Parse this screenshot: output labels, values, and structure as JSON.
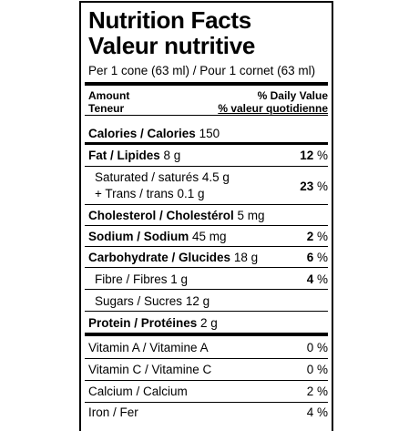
{
  "title_en": "Nutrition Facts",
  "title_fr": "Valeur nutritive",
  "serving": "Per 1 cone (63 ml) / Pour 1 cornet (63 ml)",
  "header": {
    "amount_en": "Amount",
    "amount_fr": "Teneur",
    "dv_en": "% Daily Value",
    "dv_fr": "% valeur quotidienne"
  },
  "calories": {
    "label": "Calories / Calories",
    "value": "150"
  },
  "fat": {
    "label": "Fat / Lipides",
    "value": "8 g",
    "pct_num": "12",
    "pct_sign": "%"
  },
  "saturated": {
    "label": "Saturated / saturés",
    "value": "4.5 g"
  },
  "trans": {
    "label": "+ Trans / trans",
    "value": "0.1 g"
  },
  "sat_trans_pct": {
    "num": "23",
    "sign": "%"
  },
  "cholesterol": {
    "label": "Cholesterol / Cholestérol",
    "value": "5 mg"
  },
  "sodium": {
    "label": "Sodium / Sodium",
    "value": "45 mg",
    "pct_num": "2",
    "pct_sign": "%"
  },
  "carbohydrate": {
    "label": "Carbohydrate / Glucides",
    "value": "18 g",
    "pct_num": "6",
    "pct_sign": "%"
  },
  "fibre": {
    "label": "Fibre / Fibres",
    "value": "1 g",
    "pct_num": "4",
    "pct_sign": "%"
  },
  "sugars": {
    "label": "Sugars / Sucres",
    "value": "12 g"
  },
  "protein": {
    "label": "Protein / Protéines",
    "value": "2 g"
  },
  "vitamin_a": {
    "label": "Vitamin A / Vitamine A",
    "pct": "0 %"
  },
  "vitamin_c": {
    "label": "Vitamin C / Vitamine C",
    "pct": "0 %"
  },
  "calcium": {
    "label": "Calcium / Calcium",
    "pct": "2 %"
  },
  "iron": {
    "label": "Iron / Fer",
    "pct": "4 %"
  }
}
